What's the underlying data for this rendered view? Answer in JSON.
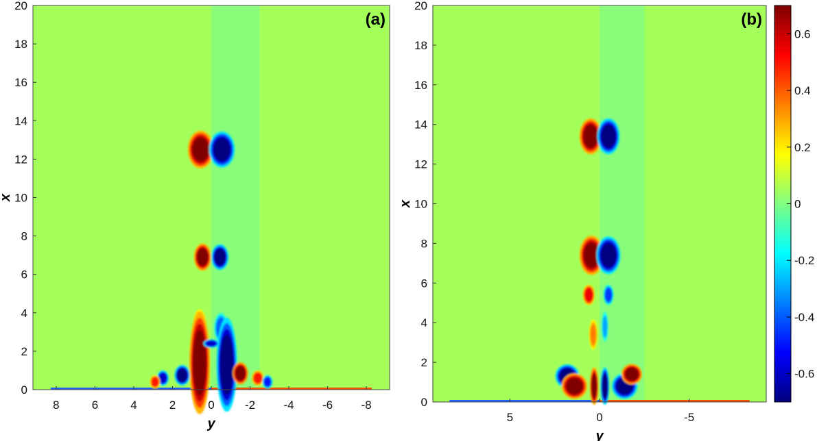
{
  "chart_data": [
    {
      "type": "heatmap",
      "panel_label": "(a)",
      "xlabel": "y",
      "ylabel": "x",
      "xlim": [
        9.2,
        -9.2
      ],
      "ylim": [
        0,
        20
      ],
      "xticks": [
        "8",
        "6",
        "4",
        "2",
        "0",
        "-2",
        "-4",
        "-6",
        "-8"
      ],
      "xtick_values": [
        8,
        6,
        4,
        2,
        0,
        -2,
        -4,
        -6,
        -8
      ],
      "yticks": [
        "0",
        "2",
        "4",
        "6",
        "8",
        "10",
        "12",
        "14",
        "16",
        "18",
        "20"
      ],
      "ytick_values": [
        0,
        2,
        4,
        6,
        8,
        10,
        12,
        14,
        16,
        18,
        20
      ],
      "colormap": "jet",
      "background_value": 0.05,
      "features": [
        {
          "y": 0.55,
          "x": 12.5,
          "v": 0.7
        },
        {
          "y": -0.55,
          "x": 12.5,
          "v": -0.7
        },
        {
          "y": 0.45,
          "x": 6.9,
          "v": 0.7
        },
        {
          "y": -0.45,
          "x": 6.9,
          "v": -0.7
        },
        {
          "y": 0.6,
          "x": 3.2,
          "v": 0.45
        },
        {
          "y": -0.5,
          "x": 3.2,
          "v": -0.4
        },
        {
          "y": 0.6,
          "x": 1.4,
          "v": 0.7
        },
        {
          "y": -0.8,
          "x": 1.3,
          "v": -0.7
        },
        {
          "y": 1.5,
          "x": 0.75,
          "v": -0.7
        },
        {
          "y": -1.5,
          "x": 0.85,
          "v": 0.7
        },
        {
          "y": 2.5,
          "x": 0.6,
          "v": -0.6
        },
        {
          "y": -2.4,
          "x": 0.6,
          "v": 0.5
        },
        {
          "y": 2.9,
          "x": 0.4,
          "v": 0.5
        },
        {
          "y": -2.9,
          "x": 0.4,
          "v": -0.5
        },
        {
          "y": 0.0,
          "x": 2.4,
          "v": -0.6
        }
      ]
    },
    {
      "type": "heatmap",
      "panel_label": "(b)",
      "xlabel": "y",
      "ylabel": "x",
      "xlim": [
        9.3,
        -9.3
      ],
      "ylim": [
        0,
        20
      ],
      "xticks": [
        "5",
        "0",
        "-5"
      ],
      "xtick_values": [
        5,
        0,
        -5
      ],
      "yticks": [
        "0",
        "2",
        "4",
        "6",
        "8",
        "10",
        "12",
        "14",
        "16",
        "18",
        "20"
      ],
      "ytick_values": [
        0,
        2,
        4,
        6,
        8,
        10,
        12,
        14,
        16,
        18,
        20
      ],
      "colormap": "jet",
      "background_value": 0.05,
      "features": [
        {
          "y": 0.5,
          "x": 13.4,
          "v": 0.7
        },
        {
          "y": -0.5,
          "x": 13.4,
          "v": -0.7
        },
        {
          "y": 0.45,
          "x": 7.4,
          "v": 0.7
        },
        {
          "y": -0.5,
          "x": 7.4,
          "v": -0.7
        },
        {
          "y": 0.6,
          "x": 5.4,
          "v": 0.55
        },
        {
          "y": -0.5,
          "x": 5.4,
          "v": -0.45
        },
        {
          "y": 0.35,
          "x": 3.4,
          "v": 0.35
        },
        {
          "y": -0.3,
          "x": 3.8,
          "v": -0.3
        },
        {
          "y": 1.8,
          "x": 1.3,
          "v": -0.7
        },
        {
          "y": 1.4,
          "x": 0.8,
          "v": 0.7
        },
        {
          "y": -1.4,
          "x": 0.8,
          "v": -0.7
        },
        {
          "y": -1.8,
          "x": 1.4,
          "v": 0.7
        },
        {
          "y": 0.3,
          "x": 0.8,
          "v": 0.7
        },
        {
          "y": -0.3,
          "x": 0.8,
          "v": -0.7
        }
      ]
    }
  ],
  "colorbar": {
    "range": [
      -0.7,
      0.7
    ],
    "ticks": [
      "0.6",
      "0.4",
      "0.2",
      "0",
      "-0.2",
      "-0.4",
      "-0.6"
    ],
    "tick_values": [
      0.6,
      0.4,
      0.2,
      0,
      -0.2,
      -0.4,
      -0.6
    ]
  }
}
